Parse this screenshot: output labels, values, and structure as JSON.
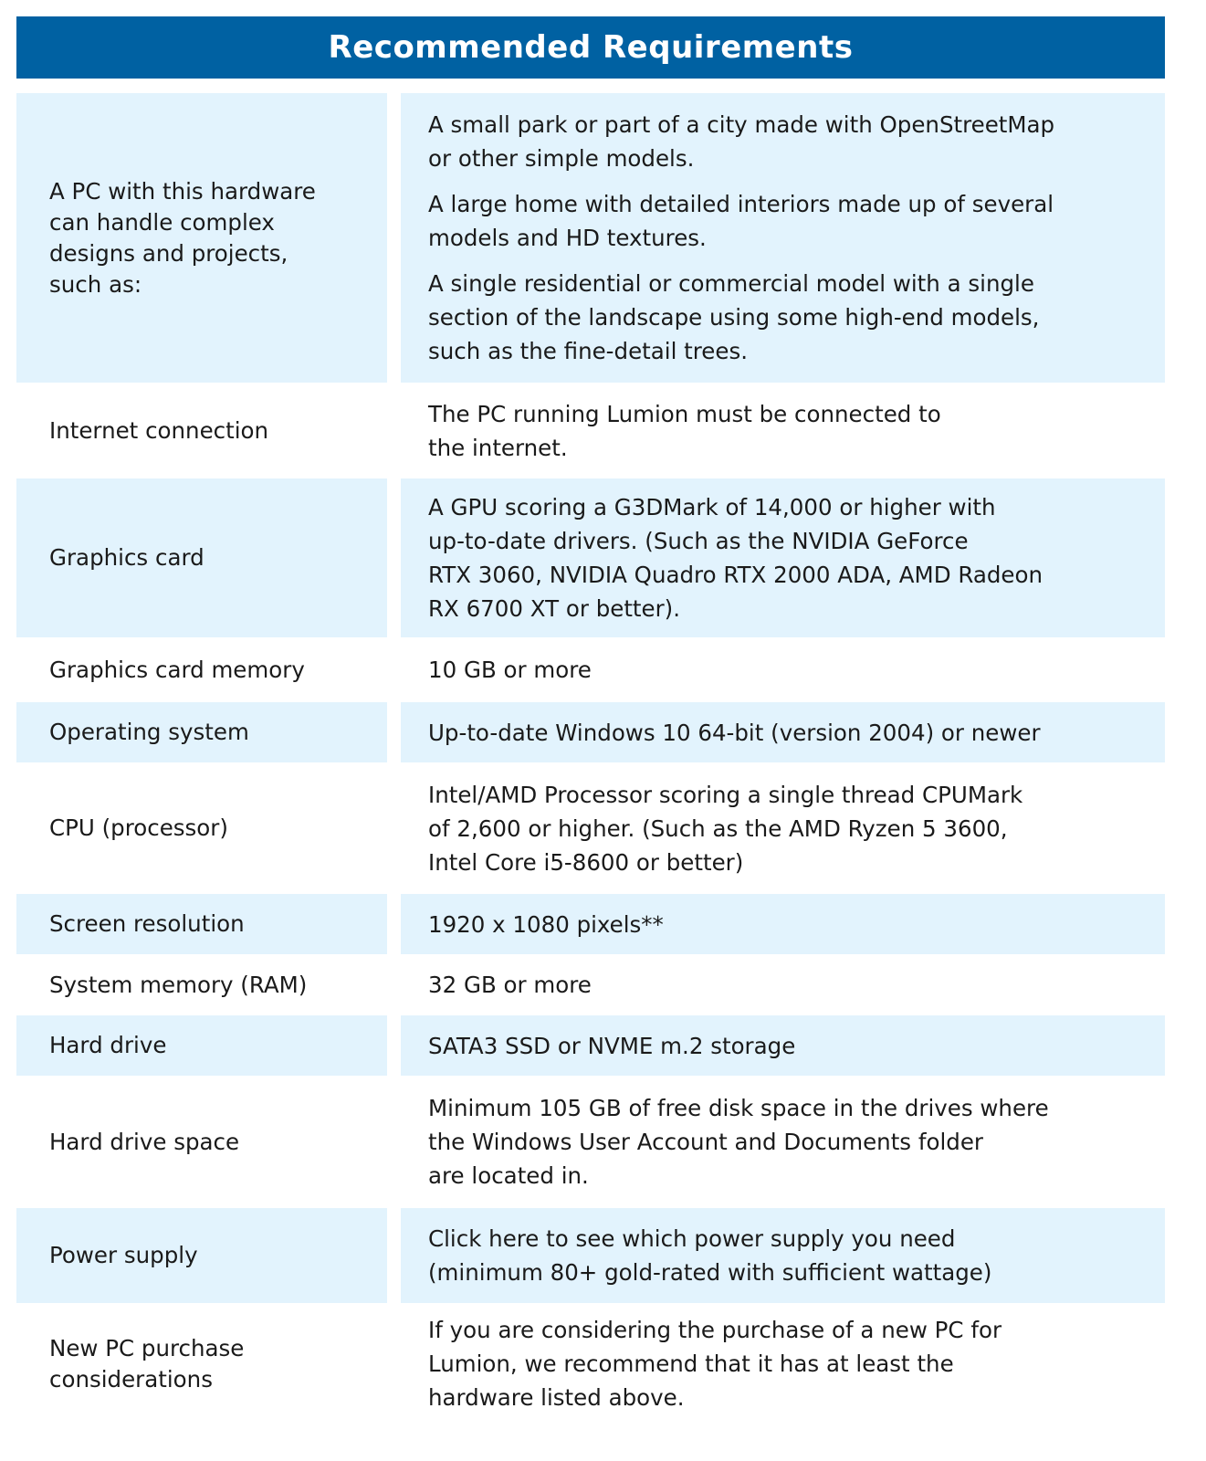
{
  "title": "Recommended Requirements",
  "colors": {
    "header_bg": "#0061a2",
    "row_shade": "#e2f3fd"
  },
  "rows": [
    {
      "label": [
        "A PC with this hardware",
        "can handle complex",
        "designs and projects,",
        "such as:"
      ],
      "value": [
        [
          "A small park or part of a city made with OpenStreetMap",
          "or other simple models."
        ],
        [
          "A large home with detailed interiors made up of several",
          "models and HD textures."
        ],
        [
          "A single residential or commercial model with a single",
          "section of the landscape using some high-end models,",
          "such as the fine-detail trees."
        ]
      ]
    },
    {
      "label": [
        "Internet connection"
      ],
      "value": [
        [
          "The PC running Lumion must be connected to",
          "the internet."
        ]
      ]
    },
    {
      "label": [
        "Graphics card"
      ],
      "value": [
        [
          "A GPU scoring a G3DMark of 14,000 or higher with",
          "up-to-date drivers. (Such as the NVIDIA GeForce",
          "RTX 3060, NVIDIA Quadro RTX 2000 ADA, AMD Radeon",
          "RX 6700 XT or better)."
        ]
      ]
    },
    {
      "label": [
        "Graphics card memory"
      ],
      "value": [
        [
          "10 GB or more"
        ]
      ]
    },
    {
      "label": [
        "Operating system"
      ],
      "value": [
        [
          "Up-to-date Windows 10 64-bit (version 2004) or newer"
        ]
      ]
    },
    {
      "label": [
        "CPU (processor)"
      ],
      "value": [
        [
          "Intel/AMD Processor scoring a single thread CPUMark",
          "of 2,600 or higher. (Such as the AMD Ryzen 5 3600,",
          "Intel Core i5-8600 or better)"
        ]
      ]
    },
    {
      "label": [
        "Screen resolution"
      ],
      "value": [
        [
          "1920 x 1080 pixels**"
        ]
      ]
    },
    {
      "label": [
        "System memory (RAM)"
      ],
      "value": [
        [
          "32 GB or more"
        ]
      ]
    },
    {
      "label": [
        "Hard drive"
      ],
      "value": [
        [
          "SATA3 SSD or NVME m.2 storage"
        ]
      ]
    },
    {
      "label": [
        "Hard drive space"
      ],
      "value": [
        [
          "Minimum 105 GB of free disk space in the drives where",
          "the Windows User Account and Documents folder",
          "are located in."
        ]
      ]
    },
    {
      "label": [
        "Power supply"
      ],
      "value": [
        [
          "Click here to see which power supply you need",
          "(minimum 80+ gold-rated with sufficient wattage)"
        ]
      ]
    },
    {
      "label": [
        "New PC purchase",
        "considerations"
      ],
      "value": [
        [
          "If you are considering the purchase of a new PC for",
          "Lumion, we recommend that it has at least the",
          "hardware listed above."
        ]
      ]
    }
  ]
}
